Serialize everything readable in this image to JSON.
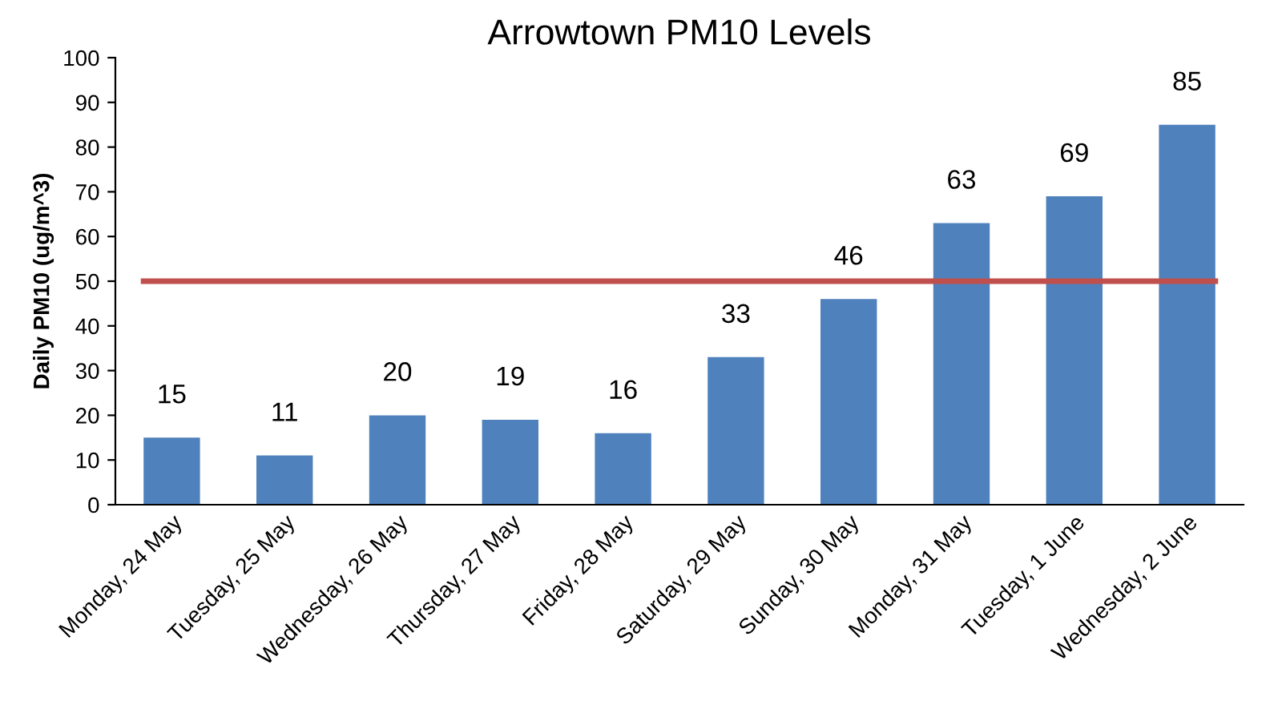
{
  "chart_data": {
    "type": "bar",
    "title": "Arrowtown PM10 Levels",
    "ylabel": "Daily PM10 (ug/m^3)",
    "categories": [
      "Monday, 24 May",
      "Tuesday, 25 May",
      "Wednesday, 26 May",
      "Thursday, 27 May",
      "Friday, 28 May",
      "Saturday, 29 May",
      "Sunday, 30 May",
      "Monday, 31 May",
      "Tuesday, 1 June",
      "Wednesday, 2 June"
    ],
    "values": [
      15,
      11,
      20,
      19,
      16,
      33,
      46,
      63,
      69,
      85
    ],
    "color": "#4f81bd",
    "ylim": [
      0,
      100
    ],
    "yticks": [
      0,
      10,
      20,
      30,
      40,
      50,
      60,
      70,
      80,
      90,
      100
    ],
    "grid": false,
    "data_labels": true,
    "ref_lines": [
      {
        "axis": "y",
        "value": 50,
        "label": null,
        "color": "#c0504d",
        "line_style": "solid"
      }
    ]
  }
}
